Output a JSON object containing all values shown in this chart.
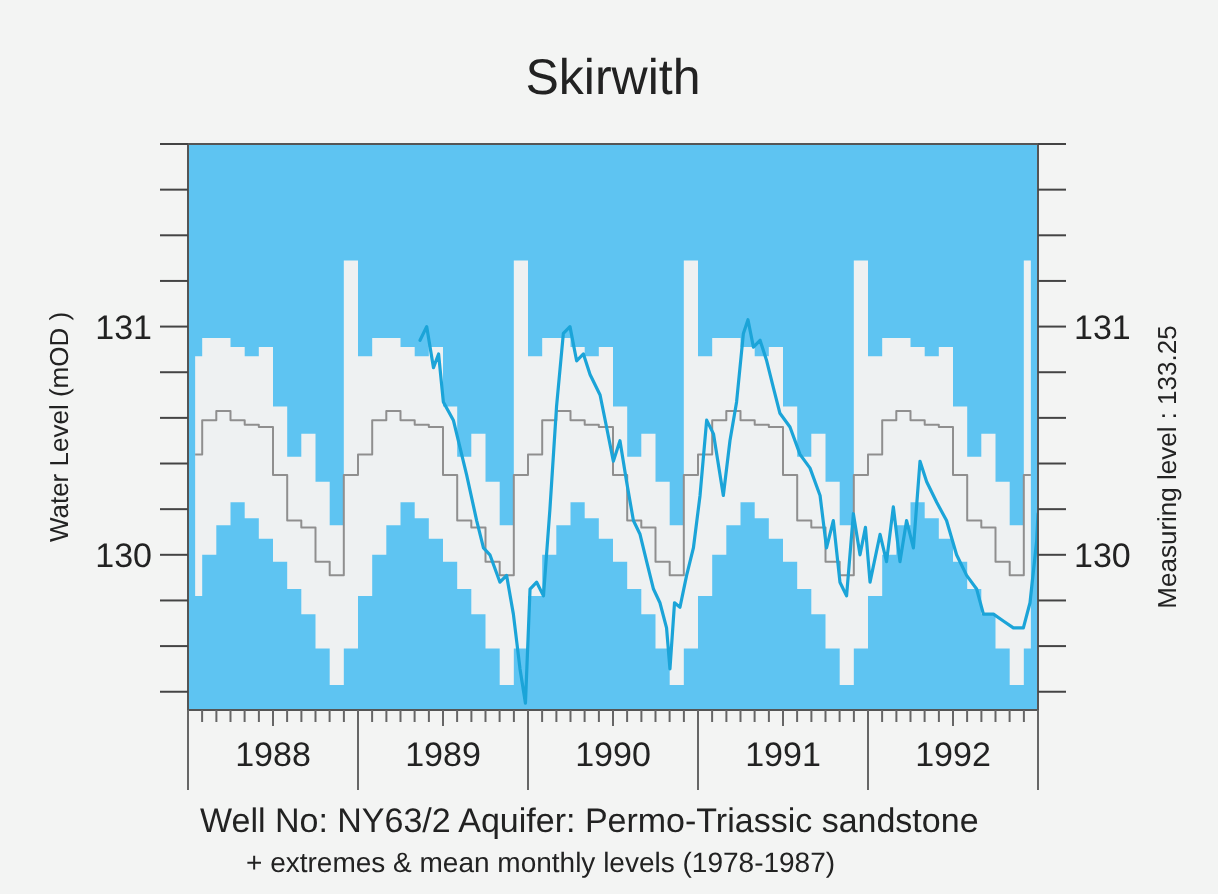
{
  "chart_data": {
    "type": "line",
    "title": "Skirwith",
    "ylabel": "Water Level  (mOD )",
    "y2label": "Measuring level : 133.25",
    "annotations": [
      "Well No: NY63/2   Aquifer: Permo-Triassic sandstone",
      "+ extremes & mean monthly levels (1978-1987)"
    ],
    "xlim": [
      1988,
      1993
    ],
    "ylim": [
      129.32,
      131.8
    ],
    "y2lim": [
      129.32,
      131.8
    ],
    "xticks": [
      {
        "value": 1988,
        "label": null
      },
      {
        "value": 1988.083,
        "label": null
      },
      {
        "value": 1988.167,
        "label": null
      },
      {
        "value": 1988.25,
        "label": null
      },
      {
        "value": 1988.333,
        "label": null
      },
      {
        "value": 1988.417,
        "label": null
      },
      {
        "value": 1988.5,
        "label": "1988"
      },
      {
        "value": 1988.583,
        "label": null
      },
      {
        "value": 1988.667,
        "label": null
      },
      {
        "value": 1988.75,
        "label": null
      },
      {
        "value": 1988.833,
        "label": null
      },
      {
        "value": 1988.917,
        "label": null
      },
      {
        "value": 1989,
        "label": null
      },
      {
        "value": 1989.083,
        "label": null
      },
      {
        "value": 1989.167,
        "label": null
      },
      {
        "value": 1989.25,
        "label": null
      },
      {
        "value": 1989.333,
        "label": null
      },
      {
        "value": 1989.417,
        "label": null
      },
      {
        "value": 1989.5,
        "label": "1989"
      },
      {
        "value": 1989.583,
        "label": null
      },
      {
        "value": 1989.667,
        "label": null
      },
      {
        "value": 1989.75,
        "label": null
      },
      {
        "value": 1989.833,
        "label": null
      },
      {
        "value": 1989.917,
        "label": null
      },
      {
        "value": 1990,
        "label": null
      },
      {
        "value": 1990.083,
        "label": null
      },
      {
        "value": 1990.167,
        "label": null
      },
      {
        "value": 1990.25,
        "label": null
      },
      {
        "value": 1990.333,
        "label": null
      },
      {
        "value": 1990.417,
        "label": null
      },
      {
        "value": 1990.5,
        "label": "1990"
      },
      {
        "value": 1990.583,
        "label": null
      },
      {
        "value": 1990.667,
        "label": null
      },
      {
        "value": 1990.75,
        "label": null
      },
      {
        "value": 1990.833,
        "label": null
      },
      {
        "value": 1990.917,
        "label": null
      },
      {
        "value": 1991,
        "label": null
      },
      {
        "value": 1991.083,
        "label": null
      },
      {
        "value": 1991.167,
        "label": null
      },
      {
        "value": 1991.25,
        "label": null
      },
      {
        "value": 1991.333,
        "label": null
      },
      {
        "value": 1991.417,
        "label": null
      },
      {
        "value": 1991.5,
        "label": "1991"
      },
      {
        "value": 1991.583,
        "label": null
      },
      {
        "value": 1991.667,
        "label": null
      },
      {
        "value": 1991.75,
        "label": null
      },
      {
        "value": 1991.833,
        "label": null
      },
      {
        "value": 1991.917,
        "label": null
      },
      {
        "value": 1992,
        "label": null
      },
      {
        "value": 1992.083,
        "label": null
      },
      {
        "value": 1992.167,
        "label": null
      },
      {
        "value": 1992.25,
        "label": null
      },
      {
        "value": 1992.333,
        "label": null
      },
      {
        "value": 1992.417,
        "label": null
      },
      {
        "value": 1992.5,
        "label": "1992"
      },
      {
        "value": 1992.583,
        "label": null
      },
      {
        "value": 1992.667,
        "label": null
      },
      {
        "value": 1992.75,
        "label": null
      },
      {
        "value": 1992.833,
        "label": null
      },
      {
        "value": 1992.917,
        "label": null
      },
      {
        "value": 1993,
        "label": null
      }
    ],
    "yticks": [
      {
        "value": 129.4,
        "label": null
      },
      {
        "value": 129.6,
        "label": null
      },
      {
        "value": 129.8,
        "label": null
      },
      130,
      {
        "value": 130.2,
        "label": null
      },
      {
        "value": 130.4,
        "label": null
      },
      {
        "value": 130.6,
        "label": null
      },
      {
        "value": 130.8,
        "label": null
      },
      131,
      {
        "value": 131.2,
        "label": null
      },
      {
        "value": 131.4,
        "label": null
      },
      {
        "value": 131.6,
        "label": null
      },
      {
        "value": 131.8,
        "label": null
      }
    ],
    "y2ticks": [
      {
        "value": 129.4,
        "label": null
      },
      {
        "value": 129.6,
        "label": null
      },
      {
        "value": 129.8,
        "label": null
      },
      130,
      {
        "value": 130.2,
        "label": null
      },
      {
        "value": 130.4,
        "label": null
      },
      {
        "value": 130.6,
        "label": null
      },
      {
        "value": 130.8,
        "label": null
      },
      131,
      {
        "value": 131.2,
        "label": null
      },
      {
        "value": 131.4,
        "label": null
      },
      {
        "value": 131.6,
        "label": null
      },
      {
        "value": 131.8,
        "label": null
      }
    ],
    "x": [
      1988.042,
      1988.125,
      1988.208,
      1988.292,
      1988.375,
      1988.458,
      1988.542,
      1988.625,
      1988.708,
      1988.792,
      1988.875,
      1988.958,
      1989.042,
      1989.125,
      1989.208,
      1989.292,
      1989.375,
      1989.458,
      1989.542,
      1989.625,
      1989.708,
      1989.792,
      1989.875,
      1989.958,
      1990.042,
      1990.125,
      1990.208,
      1990.292,
      1990.375,
      1990.458,
      1990.542,
      1990.625,
      1990.708,
      1990.792,
      1990.875,
      1990.958,
      1991.042,
      1991.125,
      1991.208,
      1991.292,
      1991.375,
      1991.458,
      1991.542,
      1991.625,
      1991.708,
      1991.792,
      1991.875,
      1991.958,
      1992.042,
      1992.125,
      1992.208,
      1992.292,
      1992.375,
      1992.458,
      1992.542,
      1992.625,
      1992.708,
      1992.792,
      1992.875,
      1992.958
    ],
    "series": [
      {
        "type": "step",
        "color": "#8f8f8f",
        "values": [
          130.44,
          130.59,
          130.63,
          130.59,
          130.57,
          130.56,
          130.35,
          130.15,
          130.12,
          129.97,
          129.91,
          130.35,
          130.44,
          130.59,
          130.63,
          130.59,
          130.57,
          130.56,
          130.35,
          130.15,
          130.12,
          129.97,
          129.91,
          130.35,
          130.44,
          130.59,
          130.63,
          130.59,
          130.57,
          130.56,
          130.35,
          130.15,
          130.12,
          129.97,
          129.91,
          130.35,
          130.44,
          130.59,
          130.63,
          130.59,
          130.57,
          130.56,
          130.35,
          130.15,
          130.12,
          129.97,
          129.91,
          130.35,
          130.44,
          130.59,
          130.63,
          130.59,
          130.57,
          130.56,
          130.35,
          130.15,
          130.12,
          129.97,
          129.91,
          130.35
        ],
        "lower": [
          129.82,
          130.0,
          130.13,
          130.23,
          130.16,
          130.07,
          129.97,
          129.85,
          129.74,
          129.59,
          129.43,
          129.59,
          129.82,
          130.0,
          130.13,
          130.23,
          130.16,
          130.07,
          129.97,
          129.85,
          129.74,
          129.59,
          129.43,
          129.59,
          129.82,
          130.0,
          130.13,
          130.23,
          130.16,
          130.07,
          129.97,
          129.85,
          129.74,
          129.59,
          129.43,
          129.59,
          129.82,
          130.0,
          130.13,
          130.23,
          130.16,
          130.07,
          129.97,
          129.85,
          129.74,
          129.59,
          129.43,
          129.59,
          129.82,
          130.0,
          130.13,
          130.23,
          130.16,
          130.07,
          129.97,
          129.85,
          129.74,
          129.59,
          129.43,
          129.59
        ],
        "upper": [
          130.87,
          130.95,
          130.95,
          130.91,
          130.87,
          130.91,
          130.65,
          130.43,
          130.53,
          130.32,
          130.13,
          131.29,
          130.87,
          130.95,
          130.95,
          130.91,
          130.87,
          130.91,
          130.65,
          130.43,
          130.53,
          130.32,
          130.13,
          131.29,
          130.87,
          130.95,
          130.95,
          130.91,
          130.87,
          130.91,
          130.65,
          130.43,
          130.53,
          130.32,
          130.13,
          131.29,
          130.87,
          130.95,
          130.95,
          130.91,
          130.87,
          130.91,
          130.65,
          130.43,
          130.53,
          130.32,
          130.13,
          131.29,
          130.87,
          130.95,
          130.95,
          130.91,
          130.87,
          130.91,
          130.65,
          130.43,
          130.53,
          130.32,
          130.13,
          131.29
        ]
      },
      {
        "type": "line",
        "color": "#1ba4d8",
        "x": [
          1989.365,
          1989.404,
          1989.444,
          1989.474,
          1989.502,
          1989.561,
          1989.639,
          1989.698,
          1989.738,
          1989.776,
          1989.835,
          1989.874,
          1989.914,
          1989.953,
          1989.985,
          1990.012,
          1990.051,
          1990.091,
          1990.129,
          1990.168,
          1990.208,
          1990.247,
          1990.286,
          1990.326,
          1990.365,
          1990.424,
          1990.462,
          1990.502,
          1990.541,
          1990.58,
          1990.62,
          1990.659,
          1990.698,
          1990.738,
          1990.776,
          1990.815,
          1990.835,
          1990.862,
          1990.894,
          1990.933,
          1990.973,
          1991.012,
          1991.051,
          1991.091,
          1991.149,
          1991.188,
          1991.227,
          1991.267,
          1991.294,
          1991.326,
          1991.365,
          1991.404,
          1991.444,
          1991.482,
          1991.541,
          1991.6,
          1991.659,
          1991.718,
          1991.756,
          1991.796,
          1991.835,
          1991.874,
          1991.914,
          1991.953,
          1991.985,
          1992.012,
          1992.071,
          1992.109,
          1992.149,
          1992.188,
          1992.227,
          1992.267,
          1992.306,
          1992.345,
          1992.404,
          1992.462,
          1992.521,
          1992.58,
          1992.639,
          1992.679,
          1992.738,
          1992.796,
          1992.855,
          1992.914,
          1992.953,
          1992.992,
          1993
        ],
        "values": [
          130.94,
          131.0,
          130.82,
          130.88,
          130.67,
          130.59,
          130.35,
          130.15,
          130.03,
          130.0,
          129.88,
          129.91,
          129.74,
          129.5,
          129.35,
          129.85,
          129.88,
          129.82,
          130.2,
          130.65,
          130.97,
          131.0,
          130.85,
          130.88,
          130.79,
          130.7,
          130.56,
          130.41,
          130.5,
          130.32,
          130.15,
          130.09,
          129.97,
          129.85,
          129.79,
          129.68,
          129.5,
          129.79,
          129.77,
          129.91,
          130.03,
          130.26,
          130.59,
          130.53,
          130.26,
          130.5,
          130.67,
          130.97,
          131.03,
          130.91,
          130.94,
          130.85,
          130.73,
          130.62,
          130.56,
          130.44,
          130.38,
          130.26,
          130.03,
          130.15,
          129.88,
          129.82,
          130.18,
          130.0,
          130.12,
          129.88,
          130.09,
          129.97,
          130.21,
          129.97,
          130.15,
          130.03,
          130.41,
          130.32,
          130.23,
          130.15,
          130.0,
          129.91,
          129.85,
          129.74,
          129.74,
          129.71,
          129.68,
          129.68,
          129.79,
          130.06,
          130.18
        ]
      }
    ]
  }
}
